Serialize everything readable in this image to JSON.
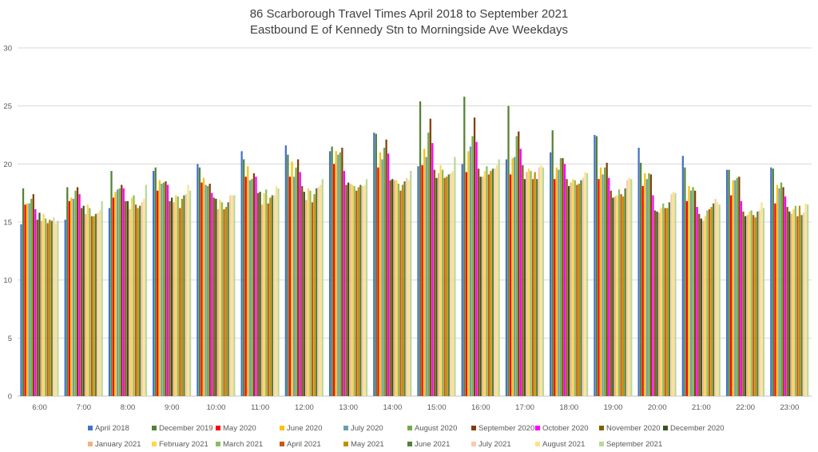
{
  "chart_data": {
    "type": "bar",
    "title": "86 Scarborough Travel Times April 2018 to September 2021",
    "subtitle": "Eastbound E of Kennedy Stn to Morningside Ave Weekdays",
    "xlabel": "",
    "ylabel": "",
    "ylim": [
      0,
      30
    ],
    "yticks": [
      "0",
      "5",
      "10",
      "15",
      "20",
      "25",
      "30"
    ],
    "grid": true,
    "legend_position": "bottom",
    "categories": [
      "6:00",
      "7:00",
      "8:00",
      "9:00",
      "10:00",
      "11:00",
      "12:00",
      "13:00",
      "14:00",
      "15:00",
      "16:00",
      "17:00",
      "18:00",
      "19:00",
      "20:00",
      "21:00",
      "22:00",
      "23:00"
    ],
    "series": [
      {
        "name": "April 2018",
        "color": "#4472C4",
        "values": [
          14.8,
          15.2,
          16.2,
          19.4,
          20.0,
          21.1,
          21.6,
          21.1,
          22.7,
          19.8,
          20.0,
          20.4,
          21.0,
          22.5,
          21.4,
          20.7,
          19.5,
          19.7
        ]
      },
      {
        "name": "December 2019",
        "color": "#548235",
        "values": [
          17.9,
          18.0,
          19.4,
          19.7,
          19.7,
          20.4,
          20.8,
          21.5,
          22.6,
          25.4,
          25.8,
          25.0,
          22.9,
          22.4,
          20.1,
          19.7,
          19.5,
          19.6
        ]
      },
      {
        "name": "May 2020",
        "color": "#FF0000",
        "values": [
          16.5,
          16.8,
          17.1,
          17.7,
          18.4,
          18.9,
          18.9,
          20.0,
          19.7,
          19.9,
          19.3,
          19.1,
          18.7,
          18.7,
          18.1,
          16.8,
          17.3,
          16.6
        ]
      },
      {
        "name": "June 2020",
        "color": "#FFC000",
        "values": [
          16.6,
          17.1,
          17.6,
          18.6,
          18.8,
          19.8,
          20.2,
          21.1,
          21.0,
          21.3,
          21.1,
          20.5,
          19.7,
          19.7,
          19.2,
          18.1,
          18.6,
          18.2
        ]
      },
      {
        "name": "July 2020",
        "color": "#6A9EB5",
        "values": [
          16.6,
          17.0,
          17.8,
          18.3,
          18.2,
          18.6,
          18.9,
          20.8,
          20.4,
          20.6,
          21.5,
          20.6,
          19.5,
          19.1,
          18.7,
          17.7,
          18.6,
          17.9
        ]
      },
      {
        "name": "August 2020",
        "color": "#70AD47",
        "values": [
          17.0,
          17.7,
          17.9,
          18.4,
          18.1,
          18.7,
          19.7,
          21.0,
          21.4,
          22.7,
          22.4,
          22.4,
          20.5,
          19.7,
          19.2,
          18.0,
          18.8,
          18.4
        ]
      },
      {
        "name": "September 2020",
        "color": "#843C0C",
        "values": [
          17.4,
          18.0,
          18.2,
          18.5,
          18.3,
          19.2,
          20.4,
          21.4,
          22.1,
          23.9,
          24.0,
          22.8,
          20.5,
          20.1,
          19.1,
          17.7,
          18.9,
          18.0
        ]
      },
      {
        "name": "October 2020",
        "color": "#FF00FF",
        "values": [
          16.1,
          17.4,
          17.9,
          18.2,
          17.5,
          18.9,
          19.3,
          19.4,
          20.9,
          21.8,
          21.9,
          21.3,
          20.0,
          18.8,
          17.3,
          16.3,
          16.8,
          17.2
        ]
      },
      {
        "name": "November 2020",
        "color": "#806000",
        "values": [
          15.2,
          16.2,
          16.8,
          16.8,
          17.1,
          17.5,
          18.1,
          18.2,
          18.6,
          19.5,
          19.6,
          19.9,
          18.7,
          17.7,
          16.0,
          15.7,
          15.9,
          16.3
        ]
      },
      {
        "name": "December 2020",
        "color": "#375623",
        "values": [
          15.8,
          16.4,
          16.8,
          17.1,
          17.0,
          17.6,
          17.6,
          18.4,
          18.7,
          18.8,
          18.9,
          18.7,
          18.1,
          17.1,
          15.9,
          15.3,
          15.5,
          15.9
        ]
      },
      {
        "name": "January 2021",
        "color": "#F4B183",
        "values": [
          15.1,
          15.7,
          16.1,
          16.7,
          16.1,
          16.5,
          16.9,
          18.3,
          18.6,
          19.2,
          18.9,
          19.3,
          18.4,
          17.2,
          15.8,
          15.1,
          15.6,
          15.7
        ]
      },
      {
        "name": "February 2021",
        "color": "#FFD54F",
        "values": [
          15.7,
          16.5,
          17.1,
          17.3,
          16.9,
          17.5,
          17.9,
          18.2,
          18.6,
          19.9,
          19.4,
          19.6,
          18.7,
          17.3,
          16.2,
          15.5,
          15.9,
          16.1
        ]
      },
      {
        "name": "March 2021",
        "color": "#8FBC5F",
        "values": [
          15.3,
          16.2,
          17.3,
          17.2,
          16.7,
          17.8,
          17.7,
          18.1,
          18.3,
          19.5,
          19.8,
          19.4,
          18.6,
          17.8,
          16.6,
          16.0,
          16.0,
          16.4
        ]
      },
      {
        "name": "April 2021",
        "color": "#C55A11",
        "values": [
          14.9,
          15.5,
          16.5,
          16.2,
          16.1,
          16.6,
          16.7,
          17.7,
          17.7,
          18.8,
          19.1,
          18.7,
          18.2,
          17.4,
          16.2,
          16.1,
          15.6,
          15.5
        ]
      },
      {
        "name": "May 2021",
        "color": "#BF9000",
        "values": [
          15.2,
          15.5,
          16.2,
          17.0,
          16.3,
          17.1,
          17.4,
          18.0,
          18.2,
          18.9,
          19.4,
          19.3,
          18.3,
          17.2,
          16.2,
          16.3,
          15.4,
          16.4
        ]
      },
      {
        "name": "June 2021",
        "color": "#538135",
        "values": [
          15.1,
          15.7,
          16.4,
          17.3,
          16.7,
          17.3,
          17.9,
          18.2,
          18.5,
          19.1,
          19.6,
          18.7,
          18.6,
          17.9,
          16.7,
          16.6,
          15.9,
          15.6
        ]
      },
      {
        "name": "July 2021",
        "color": "#F8CBAD",
        "values": [
          15.4,
          15.8,
          16.7,
          17.4,
          17.3,
          17.3,
          18.0,
          18.1,
          18.8,
          19.2,
          19.6,
          19.7,
          18.8,
          18.6,
          17.4,
          17.0,
          16.0,
          15.8
        ]
      },
      {
        "name": "August 2021",
        "color": "#FFE08A",
        "values": [
          14.9,
          16.0,
          17.0,
          18.2,
          17.3,
          18.1,
          18.2,
          18.2,
          18.6,
          19.4,
          19.9,
          19.9,
          19.3,
          18.8,
          17.6,
          16.7,
          16.7,
          16.6
        ]
      },
      {
        "name": "September 2021",
        "color": "#B7D99C",
        "values": [
          15.1,
          16.8,
          18.2,
          17.7,
          17.3,
          17.9,
          18.7,
          18.7,
          19.4,
          20.6,
          20.4,
          19.7,
          19.2,
          18.7,
          17.5,
          16.5,
          16.2,
          16.5
        ]
      }
    ]
  }
}
